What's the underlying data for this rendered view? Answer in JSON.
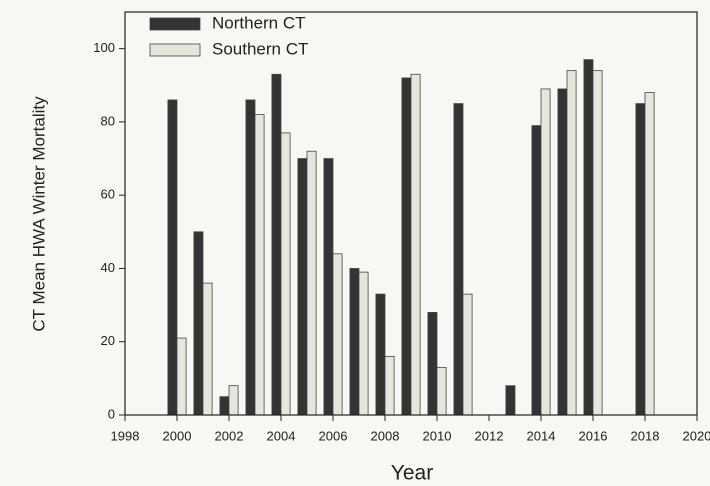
{
  "chart_data": {
    "type": "bar",
    "x_label": "Year",
    "y_label": "CT Mean HWA Winter Mortality",
    "x": [
      2000,
      2001,
      2002,
      2003,
      2004,
      2005,
      2006,
      2007,
      2008,
      2009,
      2010,
      2011,
      2013,
      2014,
      2015,
      2016,
      2018
    ],
    "series": [
      {
        "name": "Northern CT",
        "color": "#333333",
        "values": [
          86,
          50,
          5,
          86,
          93,
          70,
          70,
          40,
          33,
          92,
          28,
          85,
          8,
          79,
          89,
          97,
          85
        ]
      },
      {
        "name": "Southern CT",
        "color": "#e6e6dc",
        "values": [
          21,
          36,
          8,
          82,
          77,
          72,
          44,
          39,
          16,
          93,
          13,
          33,
          null,
          89,
          94,
          94,
          88
        ]
      }
    ],
    "xlim": [
      1998,
      2020
    ],
    "xticks": [
      1998,
      2000,
      2002,
      2004,
      2006,
      2008,
      2010,
      2012,
      2014,
      2016,
      2018,
      2020
    ],
    "ylim": [
      0,
      110
    ],
    "yticks": [
      0,
      20,
      40,
      60,
      80,
      100
    ],
    "legend": "upper left"
  }
}
